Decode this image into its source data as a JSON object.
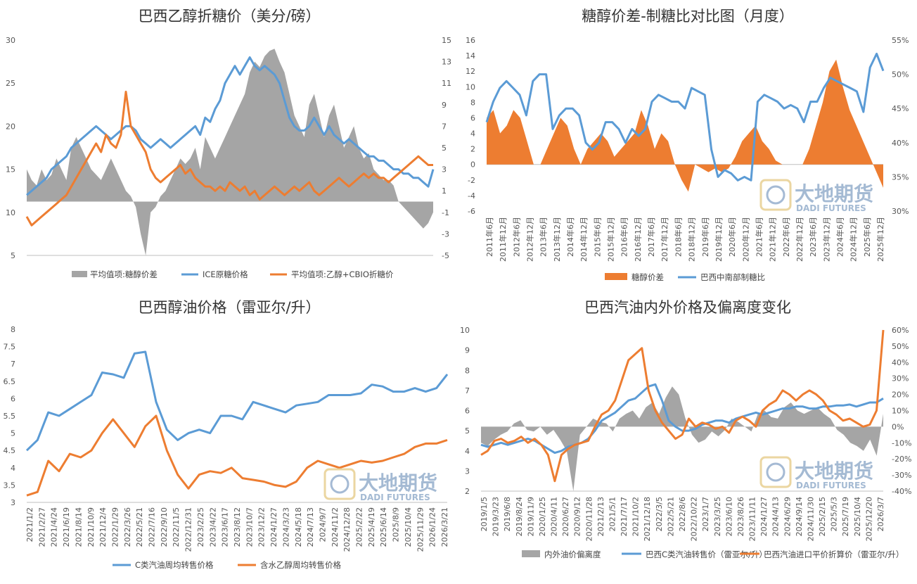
{
  "colors": {
    "gray": "#A5A5A5",
    "blue": "#5B9BD5",
    "orange": "#ED7D31",
    "axis": "#BFBFBF",
    "watermark_blue": "#8EA9C9",
    "watermark_gold": "#E6CC8A"
  },
  "watermark": {
    "cn": "大地期货",
    "en": "DADI FUTURES"
  },
  "chart_data": [
    {
      "type": "line",
      "title": "巴西乙醇折糖价（美分/磅）",
      "y_left": {
        "min": 5,
        "max": 30,
        "ticks": [
          "30",
          "25",
          "20",
          "15",
          "10",
          "5"
        ]
      },
      "y_right": {
        "min": -5,
        "max": 15,
        "ticks": [
          "15",
          "13",
          "11",
          "9",
          "7",
          "5",
          "3",
          "1",
          "-1",
          "-3",
          "-5"
        ]
      },
      "legend": [
        "平均值项:糖醇价差",
        "ICE原糖价格",
        "平均值项:乙醇+CBIO折糖价"
      ],
      "series": [
        {
          "name": "平均值项:糖醇价差",
          "kind": "area",
          "axis": "right",
          "values": [
            3,
            2,
            1.5,
            3,
            2,
            2.5,
            4,
            3,
            2,
            5,
            6,
            5,
            4,
            3,
            2.5,
            2,
            3,
            4,
            3,
            2,
            1,
            0.5,
            -0.5,
            -3,
            -5,
            -1,
            -0.5,
            0.5,
            1,
            2,
            3,
            4,
            3.5,
            4,
            5,
            3,
            6,
            5,
            4,
            5,
            6,
            7,
            8,
            9,
            10,
            12,
            13,
            12.5,
            13.5,
            14,
            14.2,
            13,
            12,
            10,
            8,
            7,
            6,
            9,
            10,
            8,
            6,
            8,
            9,
            7,
            5,
            6,
            7,
            5,
            4,
            4.5,
            3,
            2.5,
            2,
            2,
            1.5,
            0,
            -0.5,
            -1,
            -1.5,
            -2,
            -2.5,
            -2,
            -1
          ]
        },
        {
          "name": "ICE原糖价格",
          "kind": "line",
          "axis": "left",
          "values": [
            12,
            12.5,
            13,
            13.5,
            14,
            15,
            15.5,
            16,
            16.5,
            17.5,
            18,
            18.5,
            19,
            19.5,
            20,
            19.5,
            19,
            18.5,
            19,
            19.5,
            20,
            20,
            19.5,
            18.5,
            18,
            17.5,
            18,
            18.5,
            18,
            17.5,
            18,
            18.5,
            19,
            19.5,
            20,
            19,
            21,
            20.5,
            22,
            23,
            25,
            26,
            27,
            26,
            27,
            28,
            27,
            26.5,
            27,
            26.5,
            26,
            25,
            23,
            21,
            20,
            19.5,
            19.5,
            20,
            21,
            20,
            19,
            20,
            19,
            18.5,
            18,
            18.5,
            18,
            17.5,
            17,
            16.5,
            16.5,
            16,
            16,
            15.5,
            15,
            15,
            14.5,
            14.5,
            14,
            14,
            13.5,
            13,
            15
          ]
        },
        {
          "name": "平均值项:乙醇+CBIO折糖价",
          "kind": "line",
          "axis": "left",
          "values": [
            9.5,
            8.5,
            9,
            9.5,
            10,
            10.5,
            11,
            11.5,
            12,
            13,
            14,
            15,
            16,
            17,
            18,
            17,
            19,
            18,
            17.5,
            19,
            24,
            20,
            19,
            18,
            17,
            15,
            14,
            13.5,
            14,
            14.5,
            15,
            15.5,
            14.5,
            15,
            14,
            13.5,
            13,
            13,
            12.5,
            13,
            12.5,
            13.5,
            13,
            12.5,
            13,
            12,
            12.5,
            11.5,
            12,
            12.5,
            13,
            12.5,
            12,
            12.5,
            13,
            12.5,
            13,
            13.5,
            12.5,
            12,
            12.5,
            13,
            13.5,
            14,
            13.5,
            13,
            13.5,
            14,
            14.5,
            14,
            14.5,
            14,
            14,
            13.5,
            14,
            14.5,
            15,
            15.5,
            16,
            16.5,
            16,
            15.5,
            15.5
          ]
        }
      ]
    },
    {
      "type": "area",
      "title": "糖醇价差-制糖比对比图（月度）",
      "y_left": {
        "min": -6,
        "max": 16,
        "ticks": [
          "16",
          "14",
          "12",
          "10",
          "8",
          "6",
          "4",
          "2",
          "0",
          "-2",
          "-4",
          "-6"
        ]
      },
      "y_right": {
        "min": 30,
        "max": 55,
        "ticks": [
          "55%",
          "50%",
          "45%",
          "40%",
          "35%",
          "30%"
        ]
      },
      "x_labels": [
        "2011年6月",
        "2011年12月",
        "2012年6月",
        "2012年12月",
        "2013年6月",
        "2013年12月",
        "2014年6月",
        "2014年12月",
        "2015年6月",
        "2015年12月",
        "2016年6月",
        "2016年12月",
        "2017年6月",
        "2017年12月",
        "2018年6月",
        "2018年12月",
        "2019年6月",
        "2019年12月",
        "2020年6月",
        "2020年12月",
        "2021年6月",
        "2021年12月",
        "2022年6月",
        "2022年12月",
        "2023年6月",
        "2023年12月",
        "2024年6月",
        "2024年12月",
        "2025年6月",
        "2025年12月"
      ],
      "legend": [
        "糖醇价差",
        "巴西中南部制糖比"
      ],
      "series": [
        {
          "name": "糖醇价差",
          "kind": "area",
          "axis": "left",
          "values": [
            6,
            7,
            4,
            5,
            7,
            6,
            3,
            0,
            0,
            2,
            4,
            6,
            5,
            2,
            0,
            2,
            3,
            4,
            3,
            1,
            2,
            3,
            4,
            7,
            5,
            2,
            4,
            3,
            0,
            -2,
            -3.5,
            0,
            -0.5,
            -1,
            -0.5,
            -1,
            -0.5,
            1,
            3,
            4,
            5,
            3,
            2,
            0.5,
            0,
            0,
            0,
            0,
            2,
            5,
            8,
            12,
            13.5,
            10,
            7,
            5,
            3,
            1,
            -1,
            -3
          ]
        },
        {
          "name": "巴西中南部制糖比",
          "kind": "line",
          "axis": "right",
          "values": [
            43,
            46,
            48,
            49,
            48,
            47,
            44,
            49,
            50,
            50,
            42,
            44,
            45,
            45,
            44,
            40,
            39,
            40,
            43,
            43,
            42,
            40,
            42,
            41,
            42,
            46,
            47,
            46.5,
            46,
            46,
            45,
            48,
            47.5,
            47,
            39,
            35,
            36,
            35.5,
            34.5,
            35,
            34.5,
            46,
            47,
            46.5,
            46,
            45,
            45.5,
            45,
            43,
            46,
            46,
            48,
            49.5,
            49,
            48.5,
            48,
            47.5,
            44.5,
            51,
            53,
            50.5
          ]
        }
      ]
    },
    {
      "type": "line",
      "title": "巴西醇油价格（雷亚尔/升）",
      "y_left": {
        "min": 3,
        "max": 8,
        "ticks": [
          "8",
          "7.5",
          "7",
          "6.5",
          "6",
          "5.5",
          "5",
          "4.5",
          "4",
          "3.5",
          "3"
        ]
      },
      "x_labels": [
        "2021/1/2",
        "2021/2/27",
        "2021/4/24",
        "2021/6/19",
        "2021/8/14",
        "2021/10/9",
        "2021/12/4",
        "2022/1/29",
        "2022/3/26",
        "2022/5/21",
        "2022/7/16",
        "2022/9/10",
        "2022/11/5",
        "2022/12/31",
        "2023/2/25",
        "2023/4/22",
        "2023/6/17",
        "2023/8/12",
        "2023/10/7",
        "2023/12/2",
        "2024/1/27",
        "2024/3/23",
        "2024/5/18",
        "2024/7/13",
        "2024/9/7",
        "2024/11/2",
        "2024/12/28",
        "2025/2/22",
        "2025/4/19",
        "2025/6/14",
        "2025/8/9",
        "2025/10/4",
        "2025/11/29",
        "2026/1/24",
        "2026/3/21"
      ],
      "legend": [
        "C类汽油周均转售价格",
        "含水乙醇周均转售价格"
      ],
      "series": [
        {
          "name": "C类汽油周均转售价格",
          "kind": "line",
          "axis": "left",
          "values": [
            4.5,
            4.8,
            5.6,
            5.5,
            5.7,
            5.9,
            6.1,
            6.75,
            6.7,
            6.6,
            7.3,
            7.35,
            5.9,
            5.1,
            4.8,
            5.0,
            5.1,
            5.0,
            5.5,
            5.5,
            5.4,
            5.9,
            5.8,
            5.7,
            5.6,
            5.8,
            5.85,
            5.9,
            6.1,
            6.1,
            6.1,
            6.15,
            6.4,
            6.35,
            6.2,
            6.2,
            6.3,
            6.2,
            6.3,
            6.7
          ]
        },
        {
          "name": "含水乙醇周均转售价格",
          "kind": "line",
          "axis": "left",
          "values": [
            3.2,
            3.3,
            4.2,
            3.9,
            4.4,
            4.3,
            4.5,
            5.0,
            5.4,
            5.0,
            4.6,
            5.2,
            5.5,
            4.5,
            3.8,
            3.4,
            3.8,
            3.9,
            3.85,
            4.0,
            3.7,
            3.65,
            3.6,
            3.5,
            3.45,
            3.6,
            4.0,
            4.2,
            4.1,
            4.0,
            4.1,
            4.2,
            4.15,
            4.2,
            4.3,
            4.4,
            4.6,
            4.7,
            4.7,
            4.8
          ]
        }
      ]
    },
    {
      "type": "line",
      "title": "巴西汽油内外价格及偏离度变化",
      "y_left": {
        "min": 2,
        "max": 10,
        "ticks": [
          "10",
          "9",
          "8",
          "7",
          "6",
          "5",
          "4",
          "3",
          "2"
        ]
      },
      "y_right": {
        "min": -40,
        "max": 60,
        "ticks": [
          "60%",
          "50%",
          "40%",
          "30%",
          "20%",
          "10%",
          "0%",
          "-10%",
          "-20%",
          "-30%",
          "-40%"
        ]
      },
      "x_labels": [
        "2019/1/5",
        "2019/3/23",
        "2019/6/8",
        "2019/8/24",
        "2019/11/9",
        "2020/1/25",
        "2020/4/11",
        "2020/6/27",
        "2020/9/12",
        "2020/11/28",
        "2021/2/13",
        "2021/5/1",
        "2021/7/17",
        "2021/10/2",
        "2021/12/18",
        "2022/3/5",
        "2022/5/21",
        "2022/8/6",
        "2022/10/22",
        "2023/1/7",
        "2023/3/25",
        "2023/6/10",
        "2023/8/26",
        "2023/11/11",
        "2024/1/27",
        "2024/4/13",
        "2024/6/29",
        "2024/9/14",
        "2024/11/30",
        "2025/2/15",
        "2025/5/3",
        "2025/7/19",
        "2025/10/4",
        "2025/12/20",
        "2026/3/7"
      ],
      "legend": [
        "内外油价偏离度",
        "巴西C类汽油转售价（雷亚尔/升）",
        "巴西汽油进口平价折算价（雷亚尔/升）"
      ],
      "series": [
        {
          "name": "内外油价偏离度",
          "kind": "area",
          "axis": "right",
          "values": [
            -10,
            -12,
            -8,
            -5,
            -3,
            2,
            4,
            -2,
            -3,
            0,
            -5,
            -2,
            -8,
            -15,
            -40,
            -5,
            0,
            5,
            3,
            2,
            -3,
            5,
            8,
            10,
            5,
            12,
            15,
            8,
            18,
            25,
            20,
            5,
            -5,
            -10,
            -8,
            -3,
            -6,
            -2,
            5,
            3,
            0,
            -3,
            8,
            10,
            6,
            5,
            12,
            15,
            10,
            8,
            10,
            12,
            8,
            5,
            -2,
            -5,
            -10,
            -12,
            -15,
            -8,
            -18,
            8
          ]
        },
        {
          "name": "巴西C类汽油转售价（雷亚尔/升）",
          "kind": "line",
          "axis": "left",
          "values": [
            4.3,
            4.2,
            4.3,
            4.4,
            4.3,
            4.4,
            4.5,
            4.6,
            4.5,
            4.3,
            4.1,
            3.9,
            4.0,
            4.2,
            4.3,
            4.4,
            4.6,
            5.0,
            5.5,
            5.7,
            5.9,
            6.2,
            6.5,
            6.6,
            6.9,
            7.2,
            7.3,
            6.5,
            5.5,
            5.2,
            5.0,
            5.0,
            5.1,
            5.3,
            5.4,
            5.5,
            5.5,
            5.4,
            5.6,
            5.7,
            5.8,
            5.9,
            5.8,
            5.9,
            6.0,
            6.1,
            6.1,
            6.2,
            6.2,
            6.1,
            6.1,
            6.2,
            6.2,
            6.25,
            6.25,
            6.3,
            6.2,
            6.3,
            6.4,
            6.4,
            6.6
          ]
        },
        {
          "name": "巴西汽油进口平价折算价（雷亚尔/升）",
          "kind": "line",
          "axis": "left",
          "values": [
            3.8,
            4.0,
            4.5,
            4.6,
            4.4,
            4.5,
            4.7,
            4.4,
            4.6,
            4.3,
            3.8,
            2.5,
            3.8,
            4.1,
            4.3,
            4.4,
            4.5,
            5.2,
            5.8,
            6.0,
            6.5,
            7.5,
            8.5,
            8.8,
            9.1,
            7.0,
            6.0,
            5.4,
            5.0,
            4.6,
            4.8,
            5.6,
            5.2,
            5.4,
            5.3,
            5.1,
            5.2,
            4.9,
            5.5,
            5.7,
            5.5,
            5.2,
            6.0,
            6.3,
            6.5,
            7.0,
            6.8,
            6.5,
            6.8,
            7.0,
            6.8,
            6.5,
            6.0,
            5.8,
            5.5,
            5.6,
            5.4,
            5.2,
            5.3,
            6.0,
            10.0
          ]
        }
      ]
    }
  ]
}
